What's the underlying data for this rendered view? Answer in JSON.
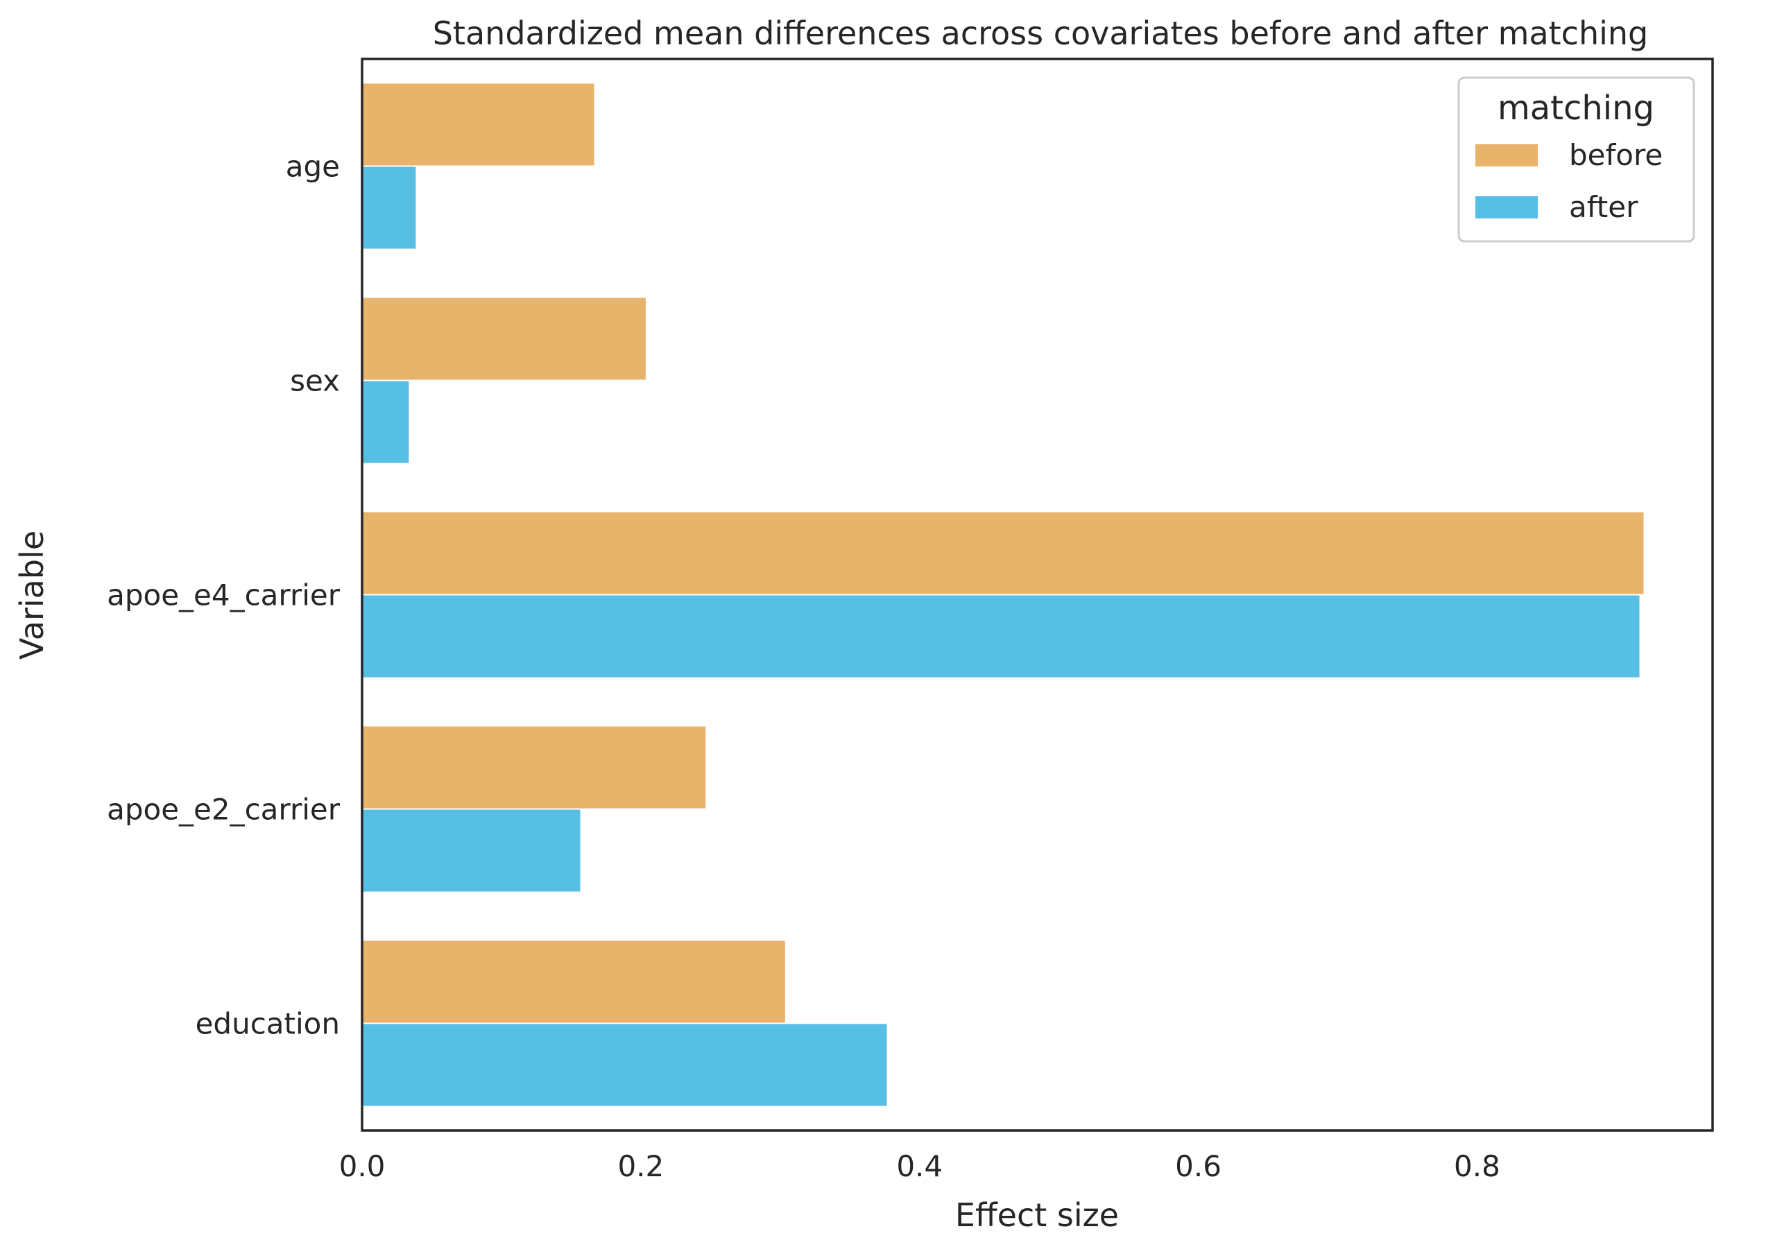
{
  "chart_data": {
    "type": "bar",
    "orientation": "horizontal",
    "title": "Standardized mean differences across covariates before and after matching",
    "xlabel": "Effect size",
    "ylabel": "Variable",
    "categories": [
      "age",
      "sex",
      "apoe_e4_carrier",
      "apoe_e2_carrier",
      "education"
    ],
    "series": [
      {
        "name": "before",
        "color": "#E8B36A",
        "values": [
          0.167,
          0.204,
          0.92,
          0.247,
          0.304
        ]
      },
      {
        "name": "after",
        "color": "#57BEE4",
        "values": [
          0.039,
          0.034,
          0.917,
          0.157,
          0.377
        ]
      }
    ],
    "xlim": [
      0.0,
      0.969
    ],
    "xticks": [
      0.0,
      0.2,
      0.4,
      0.6,
      0.8
    ],
    "xtick_labels": [
      "0.0",
      "0.2",
      "0.4",
      "0.6",
      "0.8"
    ],
    "grid": false,
    "legend": {
      "title": "matching",
      "placement": "top-right"
    }
  }
}
